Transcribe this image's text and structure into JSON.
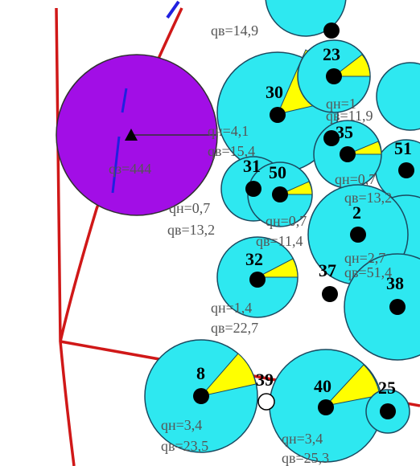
{
  "top_load": "qв=14,9",
  "nodes": [
    {
      "label": "23"
    },
    {
      "label": "30"
    },
    {
      "label": "35"
    },
    {
      "label": "51"
    },
    {
      "label": "31"
    },
    {
      "label": "50"
    },
    {
      "label": "2"
    },
    {
      "label": "32"
    },
    {
      "label": "37"
    },
    {
      "label": "38"
    },
    {
      "label": "8"
    },
    {
      "label": "39"
    },
    {
      "label": "40"
    },
    {
      "label": "25"
    }
  ],
  "source": {
    "load": "qз=444"
  },
  "loads": [
    {
      "qn": "qн=1",
      "qv": "qв=11,9"
    },
    {
      "qn": "qн=4,1",
      "qv": "qв=15,4"
    },
    {
      "qn": "qн=0,7",
      "qv": "qв=13,2"
    },
    {
      "qn": "qн=0,7",
      "qv": "qв=13,2"
    },
    {
      "qn": "qн=0,7",
      "qv": "qв=11,4"
    },
    {
      "qn": "qн=2,7",
      "qv": "qв=51,4"
    },
    {
      "qn": "qн=1,4",
      "qv": "qв=22,7"
    },
    {
      "qn": "qн=3,4",
      "qv": "qв=23,5"
    },
    {
      "qn": "qн=3,4",
      "qv": "qв=25,3"
    }
  ]
}
